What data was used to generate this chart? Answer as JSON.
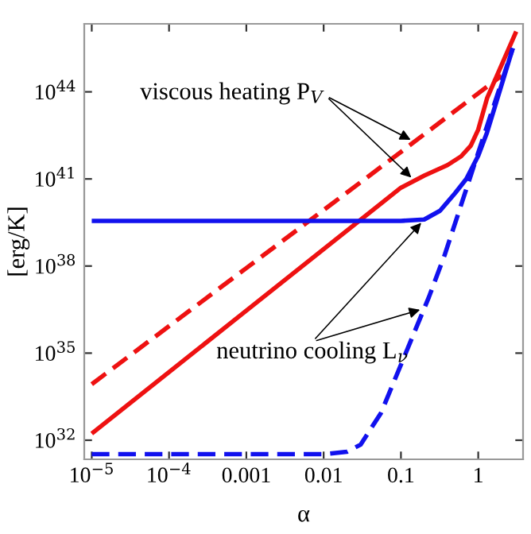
{
  "chart_data": {
    "type": "line",
    "xlabel": "α",
    "ylabel": "[erg/K]",
    "log": "xy",
    "grid": false,
    "legend": false,
    "marker": "none",
    "xlim": [
      8e-06,
      3.8
    ],
    "ylim": [
      2.2e+31,
      2.2e+46
    ],
    "xticks": [
      {
        "value": 1e-05,
        "label": "10$^{−5}$"
      },
      {
        "value": 0.0001,
        "label": "10$^{−4}$"
      },
      {
        "value": 0.001,
        "label": "0.001"
      },
      {
        "value": 0.01,
        "label": "0.01"
      },
      {
        "value": 0.1,
        "label": "0.1"
      },
      {
        "value": 1,
        "label": "1"
      }
    ],
    "yticks": [
      {
        "value": 1e+32,
        "label": "10$^{32}$"
      },
      {
        "value": 1e+35,
        "label": "10$^{35}$"
      },
      {
        "value": 1e+38,
        "label": "10$^{38}$"
      },
      {
        "value": 1e+41,
        "label": "10$^{41}$"
      },
      {
        "value": 1e+44,
        "label": "10$^{44}$"
      }
    ],
    "series": [
      {
        "color": "#ee1111",
        "line_style": "dashed",
        "x": [
          1e-05,
          0.001,
          0.1,
          2.0
        ],
        "values": [
          8.5e+33,
          8.5e+37,
          8.5e+41,
          3.6e+44
        ]
      },
      {
        "color": "#ee1111",
        "line_style": "solid",
        "x": [
          1e-05,
          0.001,
          0.1,
          0.2,
          0.4,
          0.6,
          0.8,
          1.0,
          1.3,
          3.1
        ],
        "values": [
          1.7e+32,
          2.9e+36,
          5e+40,
          1.3e+41,
          3e+41,
          6e+41,
          1.4e+42,
          5e+42,
          6e+43,
          1.2e+46
        ]
      },
      {
        "color": "#1111ee",
        "line_style": "solid",
        "x": [
          1e-05,
          0.1,
          0.2,
          0.32,
          0.5,
          0.7,
          1.0,
          1.3,
          2.8
        ],
        "values": [
          3.6e+39,
          3.6e+39,
          4e+39,
          8e+39,
          3.2e+40,
          1e+41,
          6.3e+41,
          4e+42,
          3.2e+45
        ]
      },
      {
        "color": "#1111ee",
        "line_style": "dashed",
        "x": [
          1e-05,
          0.01,
          0.02,
          0.03,
          0.055,
          0.23,
          0.37,
          1.0,
          2.8
        ],
        "values": [
          3.3e+31,
          3.3e+31,
          4e+31,
          7e+31,
          8.5e+32,
          8.5e+36,
          2.5e+38,
          8e+41,
          3.2e+45
        ]
      }
    ],
    "annotations": [
      {
        "text": "viscous heating P$_{V}$",
        "x": 0.15,
        "y": 1.9e+42
      },
      {
        "text": "neutrino cooling L$_{ν}$",
        "x": 0.2,
        "y": 4e+39
      }
    ]
  }
}
